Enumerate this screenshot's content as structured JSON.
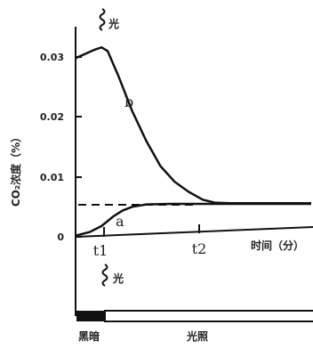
{
  "chart_data": {
    "type": "line",
    "ylabel": "CO₂浓度（%）",
    "xlabel": "时间（分）",
    "y_ticks": [
      "0",
      "0.01",
      "0.02",
      "0.03"
    ],
    "x_ticks": [
      "t1",
      "t2"
    ],
    "ylim": [
      0,
      0.035
    ],
    "dashed_level": 0.0055,
    "light_marker": "光",
    "bar_labels": [
      "黑暗",
      "光照"
    ],
    "series": [
      {
        "name": "b",
        "points": [
          [
            0,
            0.0298
          ],
          [
            0.2,
            0.0305
          ],
          [
            0.4,
            0.0312
          ],
          [
            0.55,
            0.0316
          ],
          [
            0.68,
            0.031
          ],
          [
            0.9,
            0.027
          ],
          [
            1.2,
            0.021
          ],
          [
            1.5,
            0.016
          ],
          [
            1.8,
            0.0118
          ],
          [
            2.1,
            0.0092
          ],
          [
            2.4,
            0.0075
          ],
          [
            2.7,
            0.0062
          ],
          [
            2.95,
            0.0057
          ],
          [
            3.3,
            0.0056
          ],
          [
            4.0,
            0.0056
          ],
          [
            5.0,
            0.0056
          ]
        ]
      },
      {
        "name": "a",
        "points": [
          [
            0,
            0.0002
          ],
          [
            0.3,
            0.0008
          ],
          [
            0.55,
            0.0018
          ],
          [
            0.8,
            0.0034
          ],
          [
            1.0,
            0.0044
          ],
          [
            1.2,
            0.005
          ],
          [
            1.5,
            0.0054
          ],
          [
            2.0,
            0.0055
          ],
          [
            3.0,
            0.0055
          ],
          [
            5.0,
            0.0055
          ]
        ]
      }
    ]
  }
}
